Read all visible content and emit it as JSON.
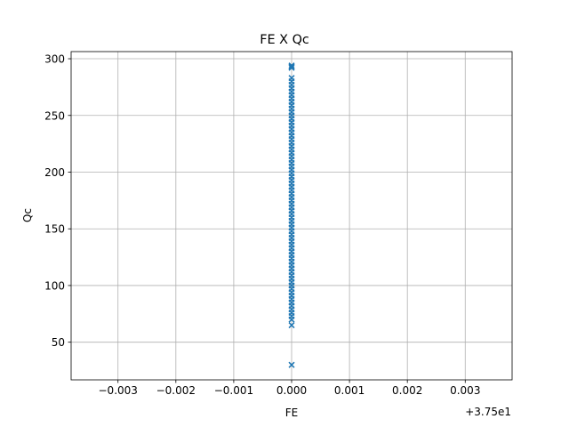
{
  "chart_data": {
    "type": "scatter",
    "title": "FE X Qc",
    "xlabel": "FE",
    "ylabel": "Qc",
    "x_offset_label": "+3.75e1",
    "x_offset": 37.5,
    "xlim": [
      37.49619,
      37.50381
    ],
    "ylim": [
      16.8,
      306.3
    ],
    "xticks": [
      37.497,
      37.498,
      37.499,
      37.5,
      37.501,
      37.502,
      37.503
    ],
    "xtick_labels": [
      "−0.003",
      "−0.002",
      "−0.001",
      "0.000",
      "0.001",
      "0.002",
      "0.003"
    ],
    "yticks": [
      50,
      100,
      150,
      200,
      250,
      300
    ],
    "ytick_labels": [
      "50",
      "100",
      "150",
      "200",
      "250",
      "300"
    ],
    "grid": true,
    "legend": "none",
    "marker": "x",
    "colors": {
      "points": "#1f77b4",
      "grid": "#b0b0b0",
      "axes": "#000000"
    },
    "series": [
      {
        "x": [
          37.5,
          37.5,
          37.5,
          37.5,
          37.5,
          37.5,
          37.5,
          37.5,
          37.5,
          37.5,
          37.5,
          37.5,
          37.5,
          37.5,
          37.5,
          37.5,
          37.5,
          37.5,
          37.5,
          37.5,
          37.5,
          37.5,
          37.5,
          37.5,
          37.5,
          37.5,
          37.5,
          37.5,
          37.5,
          37.5,
          37.5,
          37.5,
          37.5,
          37.5,
          37.5,
          37.5,
          37.5,
          37.5,
          37.5,
          37.5,
          37.5,
          37.5,
          37.5,
          37.5,
          37.5,
          37.5,
          37.5,
          37.5,
          37.5,
          37.5,
          37.5,
          37.5,
          37.5,
          37.5,
          37.5,
          37.5,
          37.5,
          37.5,
          37.5,
          37.5,
          37.5,
          37.5,
          37.5,
          37.5,
          37.5,
          37.5,
          37.5,
          37.5,
          37.5,
          37.5,
          37.5,
          37.5,
          37.5,
          37.5,
          37.5,
          37.5,
          37.5
        ],
        "y": [
          30,
          65,
          70,
          73,
          76,
          79,
          82,
          85,
          88,
          91,
          94,
          97,
          100,
          103,
          106,
          109,
          112,
          115,
          118,
          121,
          124,
          127,
          130,
          133,
          136,
          139,
          142,
          145,
          148,
          151,
          154,
          157,
          160,
          163,
          166,
          169,
          172,
          175,
          178,
          181,
          184,
          187,
          190,
          193,
          196,
          199,
          202,
          205,
          208,
          211,
          214,
          217,
          220,
          223,
          226,
          229,
          232,
          235,
          238,
          241,
          244,
          247,
          250,
          253,
          256,
          259,
          262,
          265,
          268,
          271,
          274,
          277,
          280,
          283,
          293,
          292,
          294
        ]
      }
    ]
  }
}
